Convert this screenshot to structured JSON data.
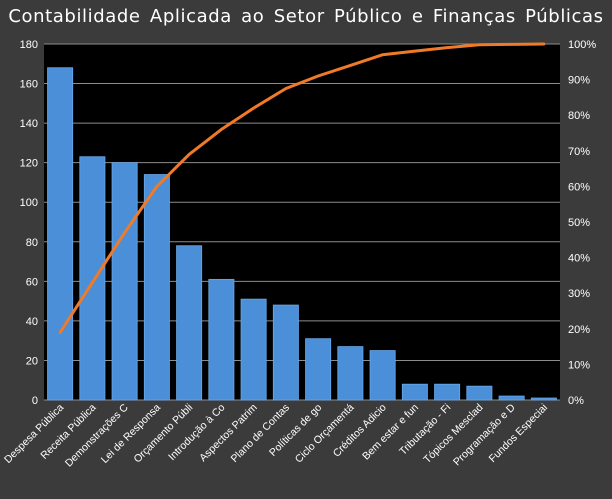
{
  "chart_data": {
    "type": "bar",
    "title": "Contabilidade  Aplicada ao Setor Público e Finanças Públicas",
    "categories": [
      "Despesa Pública",
      "Receita Pública",
      "Demonstrações C",
      "Lei de Responsa",
      "Orçamento Públi",
      "Introdução à Co",
      "Aspectos Patrim",
      "Plano de Contas",
      "Políticas de go",
      "Ciclo Orçamentá",
      "Créditos Adicio",
      "Bem estar e fun",
      "Tributação - Fi",
      "Tópicos Mesclad",
      "Programação e D",
      "Fundos Especiai"
    ],
    "series": [
      {
        "type": "bar",
        "axis": "left",
        "values": [
          168,
          123,
          120,
          114,
          78,
          61,
          51,
          48,
          31,
          27,
          25,
          8,
          8,
          7,
          2,
          1
        ]
      },
      {
        "type": "line",
        "axis": "right",
        "values": [
          0.19,
          0.33,
          0.47,
          0.6,
          0.69,
          0.76,
          0.82,
          0.875,
          0.91,
          0.94,
          0.97,
          0.98,
          0.99,
          0.998,
          0.999,
          1.0
        ]
      }
    ],
    "y_left": {
      "min": 0,
      "max": 180,
      "ticks": [
        "0",
        "20",
        "40",
        "60",
        "80",
        "100",
        "120",
        "140",
        "160",
        "180"
      ]
    },
    "y_right": {
      "min": 0,
      "max": 1,
      "ticks": [
        "0%",
        "10%",
        "20%",
        "30%",
        "40%",
        "50%",
        "60%",
        "70%",
        "80%",
        "90%",
        "100%"
      ]
    },
    "grid": true,
    "legend": "none",
    "colors": {
      "background": "#3b3b3b",
      "plot_background": "#000000",
      "bar": "#4a8fd8",
      "bar_edge": "#6aa8ea",
      "line": "#f07a28",
      "grid": "#8c8c8c",
      "text": "#ffffff"
    }
  }
}
